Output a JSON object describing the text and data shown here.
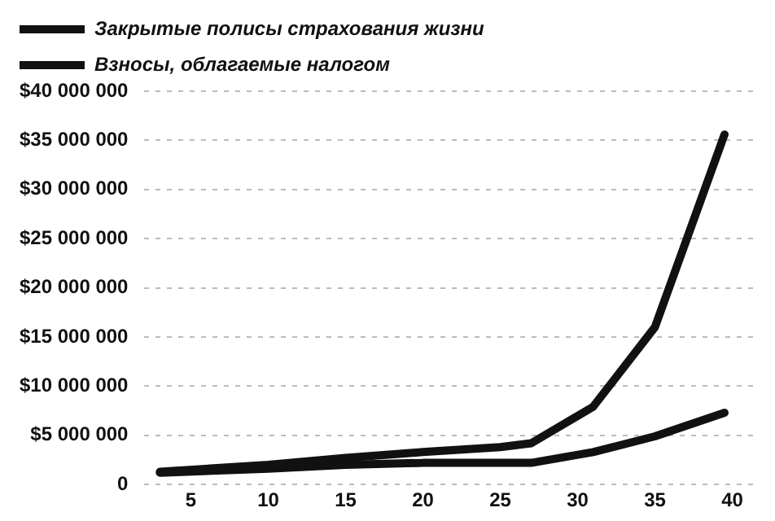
{
  "chart_data": {
    "type": "line",
    "x": [
      3,
      10,
      15,
      20,
      25,
      27,
      31,
      35,
      39.5
    ],
    "series": [
      {
        "name": "Закрытые полисы страхования жизни",
        "color": "#111111",
        "values": [
          1300000,
          2000000,
          2700000,
          3300000,
          3800000,
          4200000,
          7900000,
          16000000,
          35600000
        ]
      },
      {
        "name": "Взносы, облагаемые налогом",
        "color": "#111111",
        "values": [
          1200000,
          1600000,
          2000000,
          2200000,
          2200000,
          2200000,
          3300000,
          4900000,
          7300000
        ]
      }
    ],
    "xlim": [
      2,
      41.5
    ],
    "xticks": [
      5,
      10,
      15,
      20,
      25,
      30,
      35,
      40
    ],
    "ylim": [
      0,
      40000000
    ],
    "yticks": [
      0,
      {
        "value": 5000000,
        "label": "$5 000 000"
      },
      {
        "value": 10000000,
        "label": "$10 000 000"
      },
      {
        "value": 15000000,
        "label": "$15 000 000"
      },
      {
        "value": 20000000,
        "label": "$20 000 000"
      },
      {
        "value": 25000000,
        "label": "$25 000 000"
      },
      {
        "value": 30000000,
        "label": "$30 000 000"
      },
      {
        "value": 35000000,
        "label": "$35 000 000"
      },
      {
        "value": 40000000,
        "label": "$40 000 000"
      }
    ],
    "grid": "y",
    "legend": "top left",
    "marker": "none",
    "line_style": "solid"
  }
}
